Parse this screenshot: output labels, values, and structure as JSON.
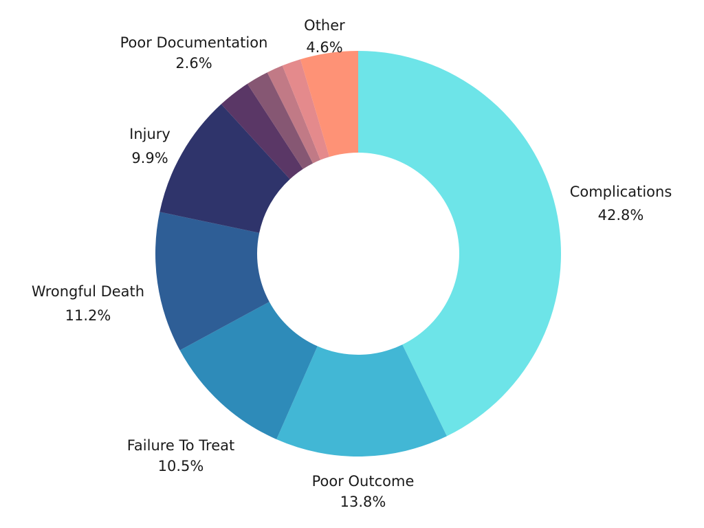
{
  "chart_data": {
    "type": "pie",
    "variant": "donut",
    "title": "",
    "slices": [
      {
        "label": "Complications",
        "value": 42.8,
        "value_label": "42.8%",
        "color": "#6de4e8",
        "labeled": true
      },
      {
        "label": "Poor Outcome",
        "value": 13.8,
        "value_label": "13.8%",
        "color": "#42b7d5",
        "labeled": true
      },
      {
        "label": "Failure To Treat",
        "value": 10.5,
        "value_label": "10.5%",
        "color": "#2e8bb9",
        "labeled": true
      },
      {
        "label": "Wrongful Death",
        "value": 11.2,
        "value_label": "11.2%",
        "color": "#2e5e96",
        "labeled": true
      },
      {
        "label": "Injury",
        "value": 9.9,
        "value_label": "9.9%",
        "color": "#2f346b",
        "labeled": true
      },
      {
        "label": "Poor Documentation",
        "value": 2.6,
        "value_label": "2.6%",
        "color": "#5a3766",
        "labeled": true
      },
      {
        "label": "",
        "value": 1.8,
        "value_label": "",
        "color": "#865773",
        "labeled": false
      },
      {
        "label": "",
        "value": 1.3,
        "value_label": "",
        "color": "#c17a86",
        "labeled": false
      },
      {
        "label": "",
        "value": 1.5,
        "value_label": "",
        "color": "#e48a8c",
        "labeled": false
      },
      {
        "label": "Other",
        "value": 4.6,
        "value_label": "4.6%",
        "color": "#fe9276",
        "labeled": true
      }
    ]
  }
}
